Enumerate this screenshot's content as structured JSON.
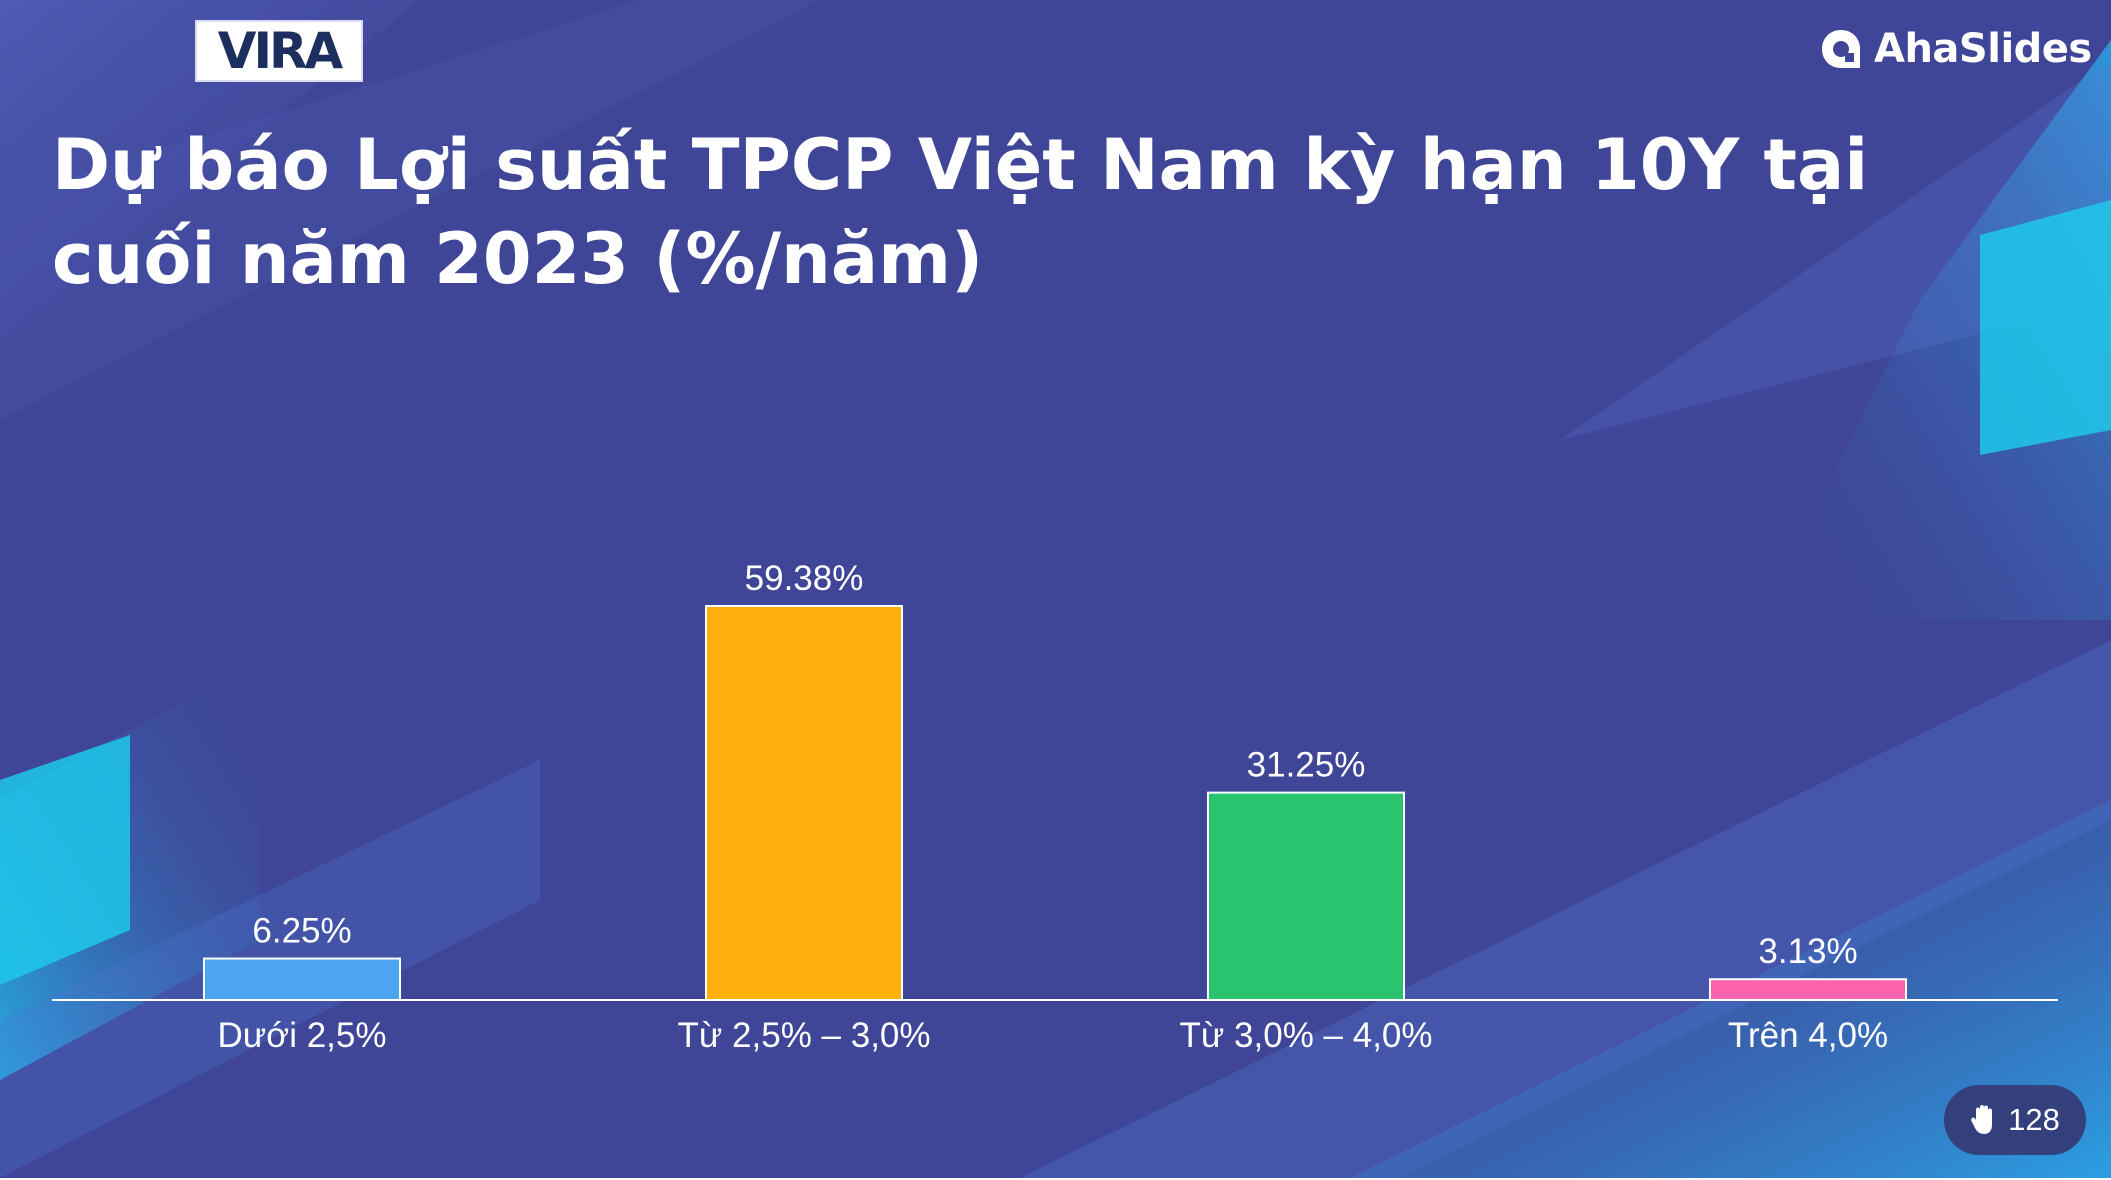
{
  "slide": {
    "title": "Dự báo Lợi suất TPCP Việt Nam kỳ hạn 10Y tại cuối năm 2023 (%/năm)",
    "background_color": "#3f4597",
    "accent_color": "#1ec8ea"
  },
  "branding": {
    "left_logo_text": "VIRA",
    "right_logo_text": "AhaSlides",
    "right_logo_icon": "ahaslides-logo-icon"
  },
  "responses": {
    "icon": "raised-hand-icon",
    "count": "128"
  },
  "chart_data": {
    "type": "bar",
    "title": "Dự báo Lợi suất TPCP Việt Nam kỳ hạn 10Y tại cuối năm 2023 (%/năm)",
    "categories": [
      "Dưới 2,5%",
      "Từ 2,5% – 3,0%",
      "Từ 3,0% – 4,0%",
      "Trên 4,0%"
    ],
    "values": [
      6.25,
      59.38,
      31.25,
      3.13
    ],
    "value_labels": [
      "6.25%",
      "59.38%",
      "31.25%",
      "3.13%"
    ],
    "colors": [
      "#4ba6ef",
      "#ffb00d",
      "#2ac46f",
      "#fe62ad"
    ],
    "ylim": [
      0,
      59.38
    ],
    "grid": false,
    "legend": "none",
    "xlabel": "",
    "ylabel": ""
  }
}
